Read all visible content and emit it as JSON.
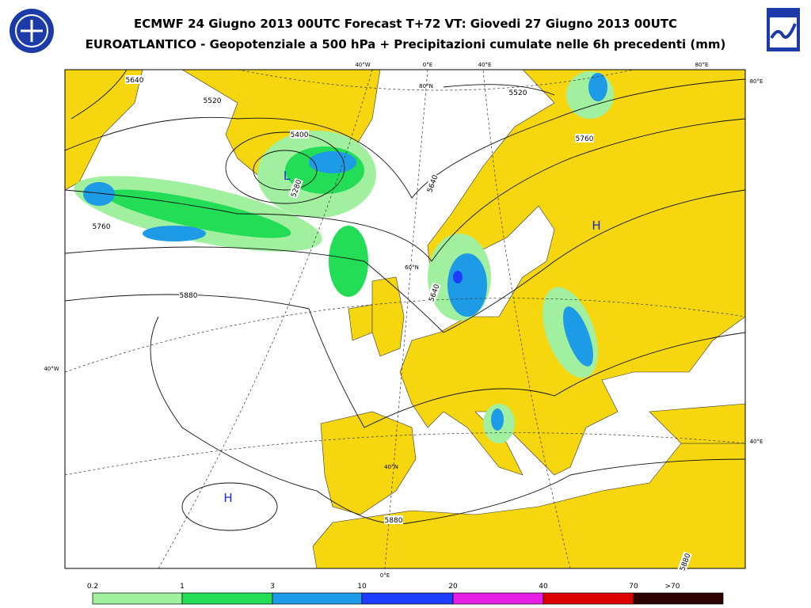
{
  "header": {
    "title_line1": "ECMWF 24 Giugno 2013 00UTC Forecast T+72 VT: Giovedi 27 Giugno 2013 00UTC",
    "title_line2": "EUROATLANTICO - Geopotenziale a 500 hPa + Precipitazioni cumulate nelle 6h precedenti (mm)"
  },
  "map": {
    "contour_labels": [
      "5640",
      "5520",
      "5400",
      "5280",
      "5760",
      "5880",
      "5520",
      "5760",
      "5640",
      "5640",
      "5880",
      "5880"
    ],
    "pressure_centers": [
      "L",
      "H",
      "H"
    ],
    "grid_labels": [
      "40°W",
      "0°E",
      "40°E",
      "80°E",
      "80°N",
      "80°E",
      "40°E",
      "40°W",
      "0°E",
      "60°N",
      "40°N"
    ]
  },
  "legend": {
    "thresholds": [
      "0.2",
      "1",
      "3",
      "10",
      "20",
      "40",
      "70",
      ">70"
    ],
    "colors": [
      "#a0f0a0",
      "#22dd55",
      "#1e9be6",
      "#1e3cff",
      "#e61ee6",
      "#dc0000",
      "#2a0000"
    ]
  }
}
